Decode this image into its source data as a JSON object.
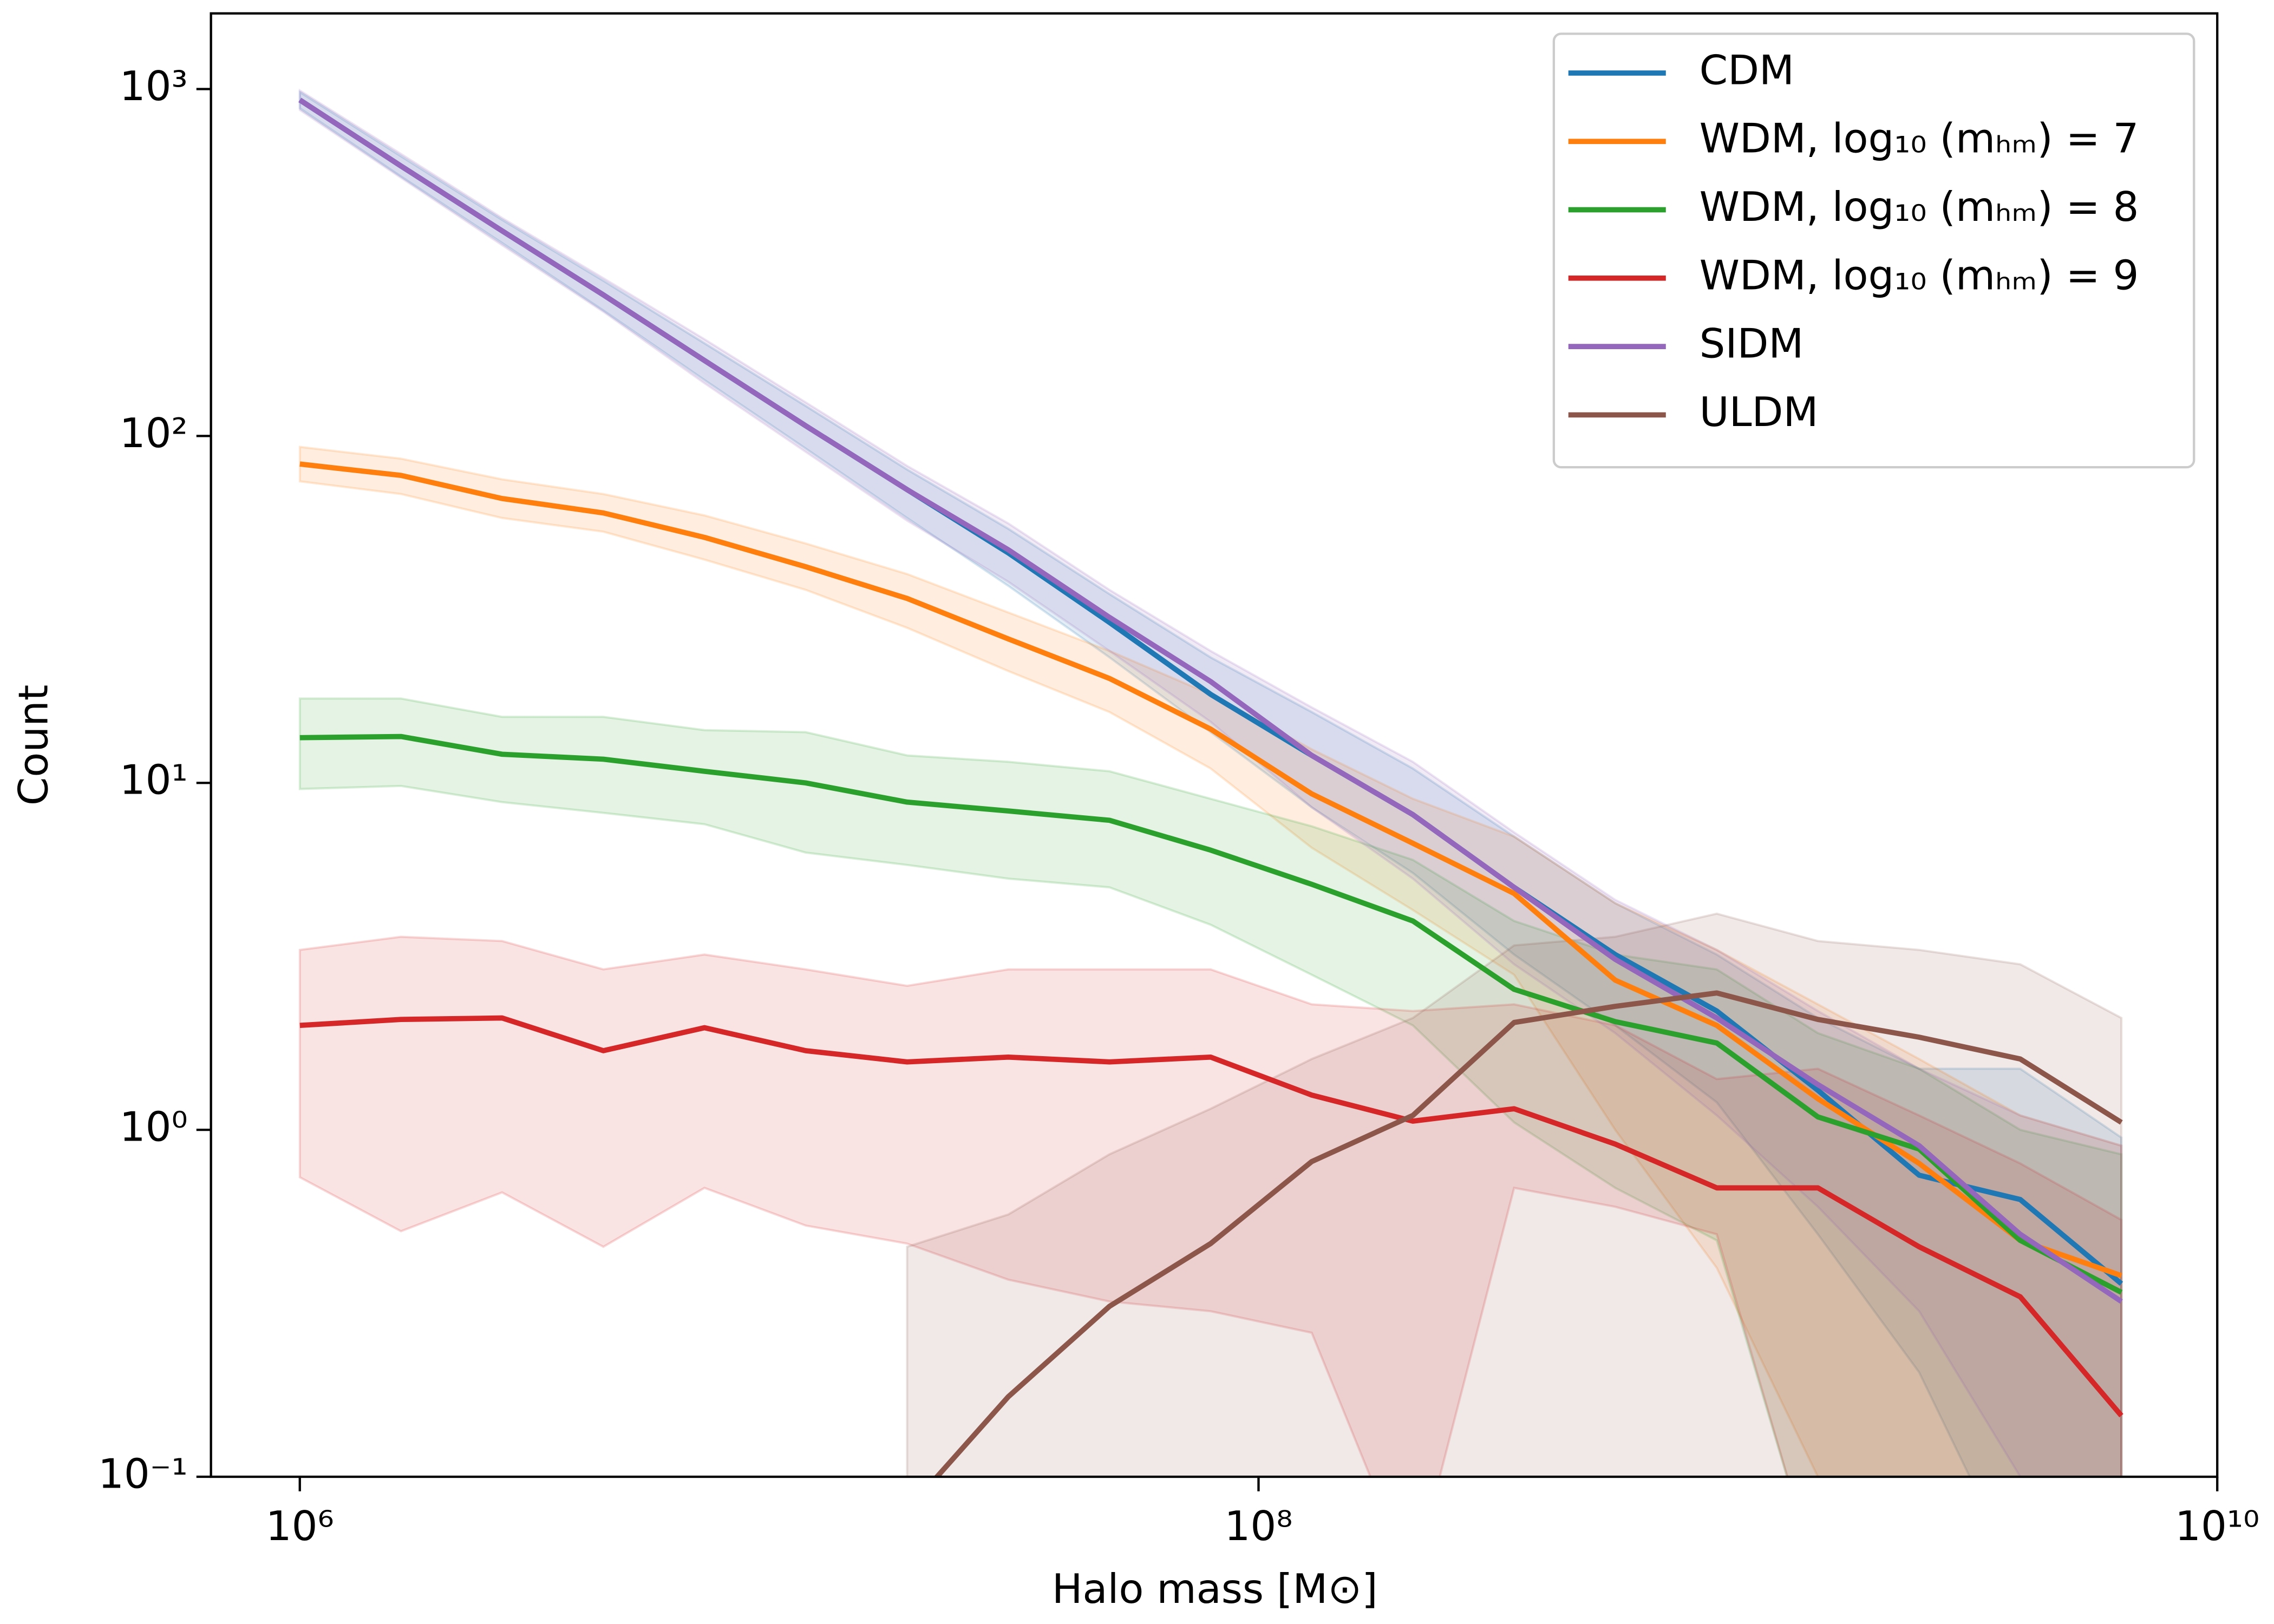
{
  "chart_data": {
    "type": "line",
    "xlabel": "Halo mass [M⊙]",
    "ylabel": "Count",
    "x": [
      1000000,
      1626000,
      2643000,
      4297000,
      6984000,
      11360000,
      18490000,
      30060000,
      48870000,
      79430000,
      129100000,
      209900000,
      341200000,
      554600000,
      903600000,
      1469000000,
      2388000000,
      3882000000,
      6310000000
    ],
    "xscale": "log",
    "yscale": "log",
    "xlim": [
      652600,
      10000000000
    ],
    "ylim": [
      0.1,
      1652
    ],
    "xticks": [
      {
        "value": 1000000,
        "label": "10⁶"
      },
      {
        "value": 100000000,
        "label": "10⁸"
      },
      {
        "value": 10000000000,
        "label": "10¹⁰"
      }
    ],
    "yticks": [
      {
        "value": 0.1,
        "label": "10⁻¹"
      },
      {
        "value": 1,
        "label": "10⁰"
      },
      {
        "value": 10,
        "label": "10¹"
      },
      {
        "value": 100,
        "label": "10²"
      },
      {
        "value": 1000,
        "label": "10³"
      }
    ],
    "legend": "upper right",
    "series": [
      {
        "name": "CDM",
        "color": "#1f77b4",
        "values": [
          930,
          600,
          390,
          255,
          165,
          107,
          70,
          46,
          29,
          18,
          12,
          8.1,
          5.0,
          3.2,
          2.2,
          1.3,
          0.74,
          0.63,
          0.36
        ],
        "upper": [
          980,
          640,
          420,
          280,
          185,
          122,
          80,
          54,
          35,
          23,
          16,
          11,
          7,
          4.5,
          3.2,
          2.1,
          1.5,
          1.5,
          0.95
        ],
        "lower": [
          880,
          560,
          360,
          230,
          145,
          92,
          58,
          37,
          23,
          14,
          8.5,
          5.5,
          3.2,
          2.0,
          1.2,
          0.5,
          0.2,
          0.05,
          0.05
        ]
      },
      {
        "name": "WDM, log₁₀ (mₕₘ) = 7",
        "color": "#ff7f0e",
        "values": [
          83,
          77,
          66,
          60,
          51,
          42,
          34,
          26,
          20,
          14.3,
          9.3,
          6.7,
          4.8,
          2.7,
          2.0,
          1.23,
          0.8,
          0.48,
          0.38
        ],
        "upper": [
          93,
          86,
          75,
          68,
          59,
          49,
          40,
          31,
          24,
          18,
          12.5,
          9,
          7,
          4.5,
          3.3,
          2.3,
          1.6,
          1.1,
          0.9
        ],
        "lower": [
          74,
          68,
          58,
          53,
          44,
          36,
          28,
          21,
          16,
          11,
          6.5,
          4.3,
          2.8,
          1.0,
          0.4,
          0.1,
          0.05,
          0.05,
          0.05
        ]
      },
      {
        "name": "WDM, log₁₀ (mₕₘ) = 8",
        "color": "#2ca02c",
        "values": [
          13.5,
          13.6,
          12.1,
          11.7,
          10.8,
          10,
          8.8,
          8.3,
          7.8,
          6.4,
          5.1,
          4.0,
          2.54,
          2.05,
          1.78,
          1.09,
          0.88,
          0.48,
          0.34
        ],
        "upper": [
          17.5,
          17.5,
          15.5,
          15.5,
          14.2,
          14,
          12,
          11.5,
          10.8,
          9,
          7.5,
          6,
          4,
          3.2,
          2.9,
          1.9,
          1.5,
          1.0,
          0.85
        ],
        "lower": [
          9.6,
          9.8,
          8.8,
          8.2,
          7.6,
          6.3,
          5.8,
          5.3,
          5.0,
          3.9,
          2.8,
          2.0,
          1.05,
          0.68,
          0.48,
          0.05,
          0.05,
          0.05,
          0.05
        ]
      },
      {
        "name": "WDM, log₁₀ (mₕₘ) = 9",
        "color": "#d62728",
        "values": [
          2.0,
          2.08,
          2.1,
          1.69,
          1.97,
          1.69,
          1.57,
          1.62,
          1.57,
          1.62,
          1.26,
          1.06,
          1.15,
          0.91,
          0.68,
          0.68,
          0.46,
          0.33,
          0.15
        ],
        "upper": [
          3.3,
          3.6,
          3.5,
          2.9,
          3.2,
          2.9,
          2.6,
          2.9,
          2.9,
          2.9,
          2.3,
          2.2,
          2.3,
          2.0,
          1.4,
          1.5,
          1.1,
          0.8,
          0.55
        ],
        "lower": [
          0.73,
          0.51,
          0.66,
          0.46,
          0.68,
          0.53,
          0.47,
          0.37,
          0.32,
          0.3,
          0.26,
          0.05,
          0.68,
          0.6,
          0.5,
          0.05,
          0.05,
          0.05,
          0.05
        ]
      },
      {
        "name": "SIDM",
        "color": "#9467bd",
        "values": [
          930,
          600,
          390,
          255,
          165,
          107,
          70,
          47,
          30,
          19.6,
          12,
          8.1,
          5.0,
          3.1,
          2.1,
          1.35,
          0.9,
          0.5,
          0.32
        ],
        "upper": [
          990,
          650,
          425,
          285,
          190,
          125,
          82,
          56,
          36,
          24,
          16.5,
          11.5,
          7.2,
          4.6,
          3.3,
          2.2,
          1.5,
          1.1,
          0.9
        ],
        "lower": [
          870,
          555,
          355,
          228,
          142,
          90,
          57,
          38,
          24,
          15,
          8.5,
          5.3,
          3.0,
          1.9,
          1.1,
          0.6,
          0.3,
          0.1,
          0.05
        ]
      },
      {
        "name": "ULDM",
        "color": "#8c564b",
        "values": [
          null,
          null,
          null,
          null,
          null,
          null,
          0.08,
          0.17,
          0.31,
          0.47,
          0.81,
          1.1,
          2.04,
          2.27,
          2.48,
          2.08,
          1.85,
          1.6,
          1.05
        ],
        "upper": [
          null,
          null,
          null,
          null,
          null,
          null,
          0.46,
          0.57,
          0.85,
          1.15,
          1.6,
          2.1,
          3.4,
          3.6,
          4.2,
          3.5,
          3.3,
          3.0,
          2.1
        ],
        "lower": [
          null,
          null,
          null,
          null,
          null,
          null,
          0.05,
          0.05,
          0.05,
          0.05,
          0.05,
          0.05,
          0.05,
          0.05,
          0.05,
          0.05,
          0.05,
          0.05,
          0.05
        ]
      }
    ]
  }
}
